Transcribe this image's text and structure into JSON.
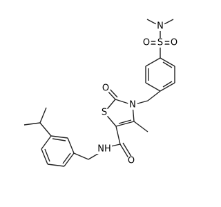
{
  "molecule": {
    "atoms": [
      {
        "label": "N"
      },
      {
        "label": "S"
      },
      {
        "label": "O"
      },
      {
        "label": "O"
      },
      {
        "label": "N"
      },
      {
        "label": "O"
      },
      {
        "label": "S"
      },
      {
        "label": "NH"
      },
      {
        "label": "O"
      }
    ]
  }
}
